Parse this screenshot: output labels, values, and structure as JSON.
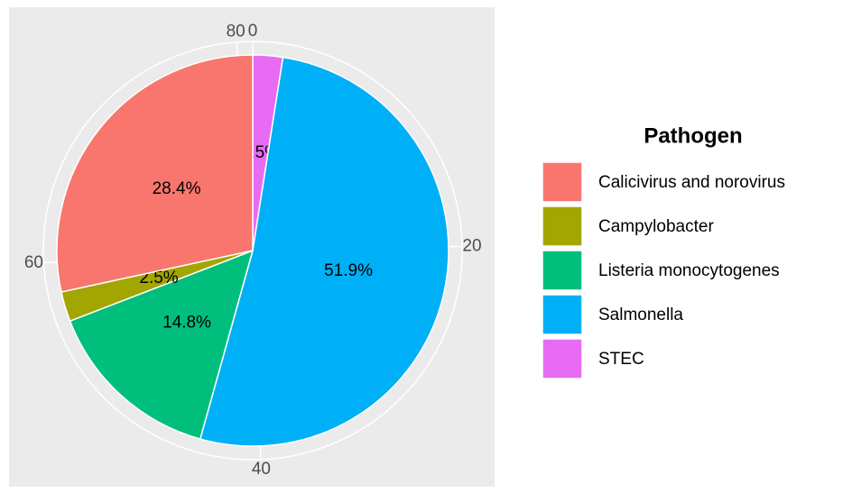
{
  "chart_data": {
    "type": "pie",
    "legend_title": "Pathogen",
    "categories": [
      "Calicivirus and norovirus",
      "Campylobacter",
      "Listeria monocytogenes",
      "Salmonella",
      "STEC"
    ],
    "values": [
      23,
      2,
      12,
      42,
      2
    ],
    "value_labels": [
      "28.4%",
      "2.5%",
      "14.8%",
      "51.9%",
      "2.5%"
    ],
    "colors": [
      "#F8766D",
      "#A3A500",
      "#00BF7D",
      "#00B0F6",
      "#E76BF3"
    ],
    "xlim": [
      0,
      81
    ],
    "xticks": [
      0,
      20,
      40,
      60,
      80
    ],
    "legend": "right"
  }
}
